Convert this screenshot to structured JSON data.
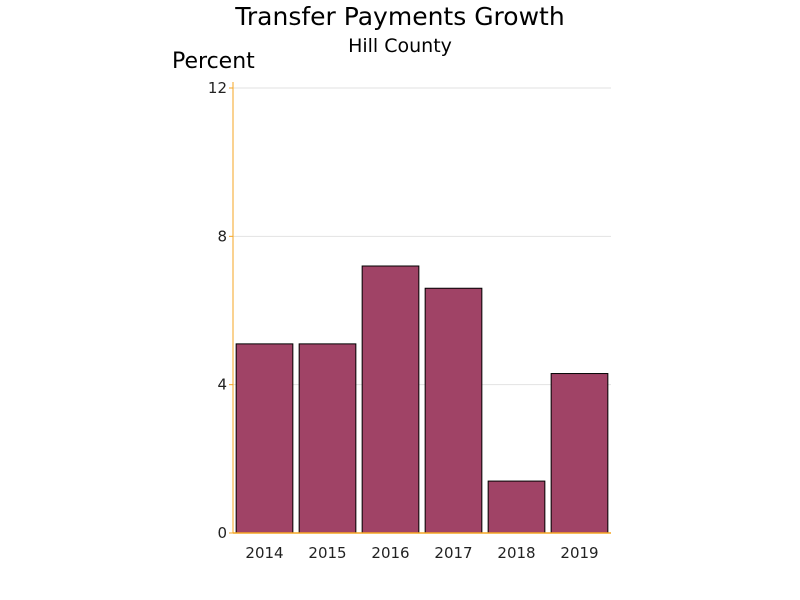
{
  "chart_data": {
    "type": "bar",
    "title": "Transfer Payments Growth",
    "subtitle": "Hill County",
    "ylabel": "Percent",
    "xlabel": "",
    "categories": [
      "2014",
      "2015",
      "2016",
      "2017",
      "2018",
      "2019"
    ],
    "values": [
      5.1,
      5.1,
      7.2,
      6.6,
      1.4,
      4.3
    ],
    "ylim": [
      0,
      12
    ],
    "yticks": [
      "0",
      "4",
      "8",
      "12"
    ],
    "grid": true,
    "colors": {
      "bar": "#a04366",
      "bar_outline": "#000000",
      "axis": "#f5a623",
      "grid": "#e2e2e2"
    }
  }
}
